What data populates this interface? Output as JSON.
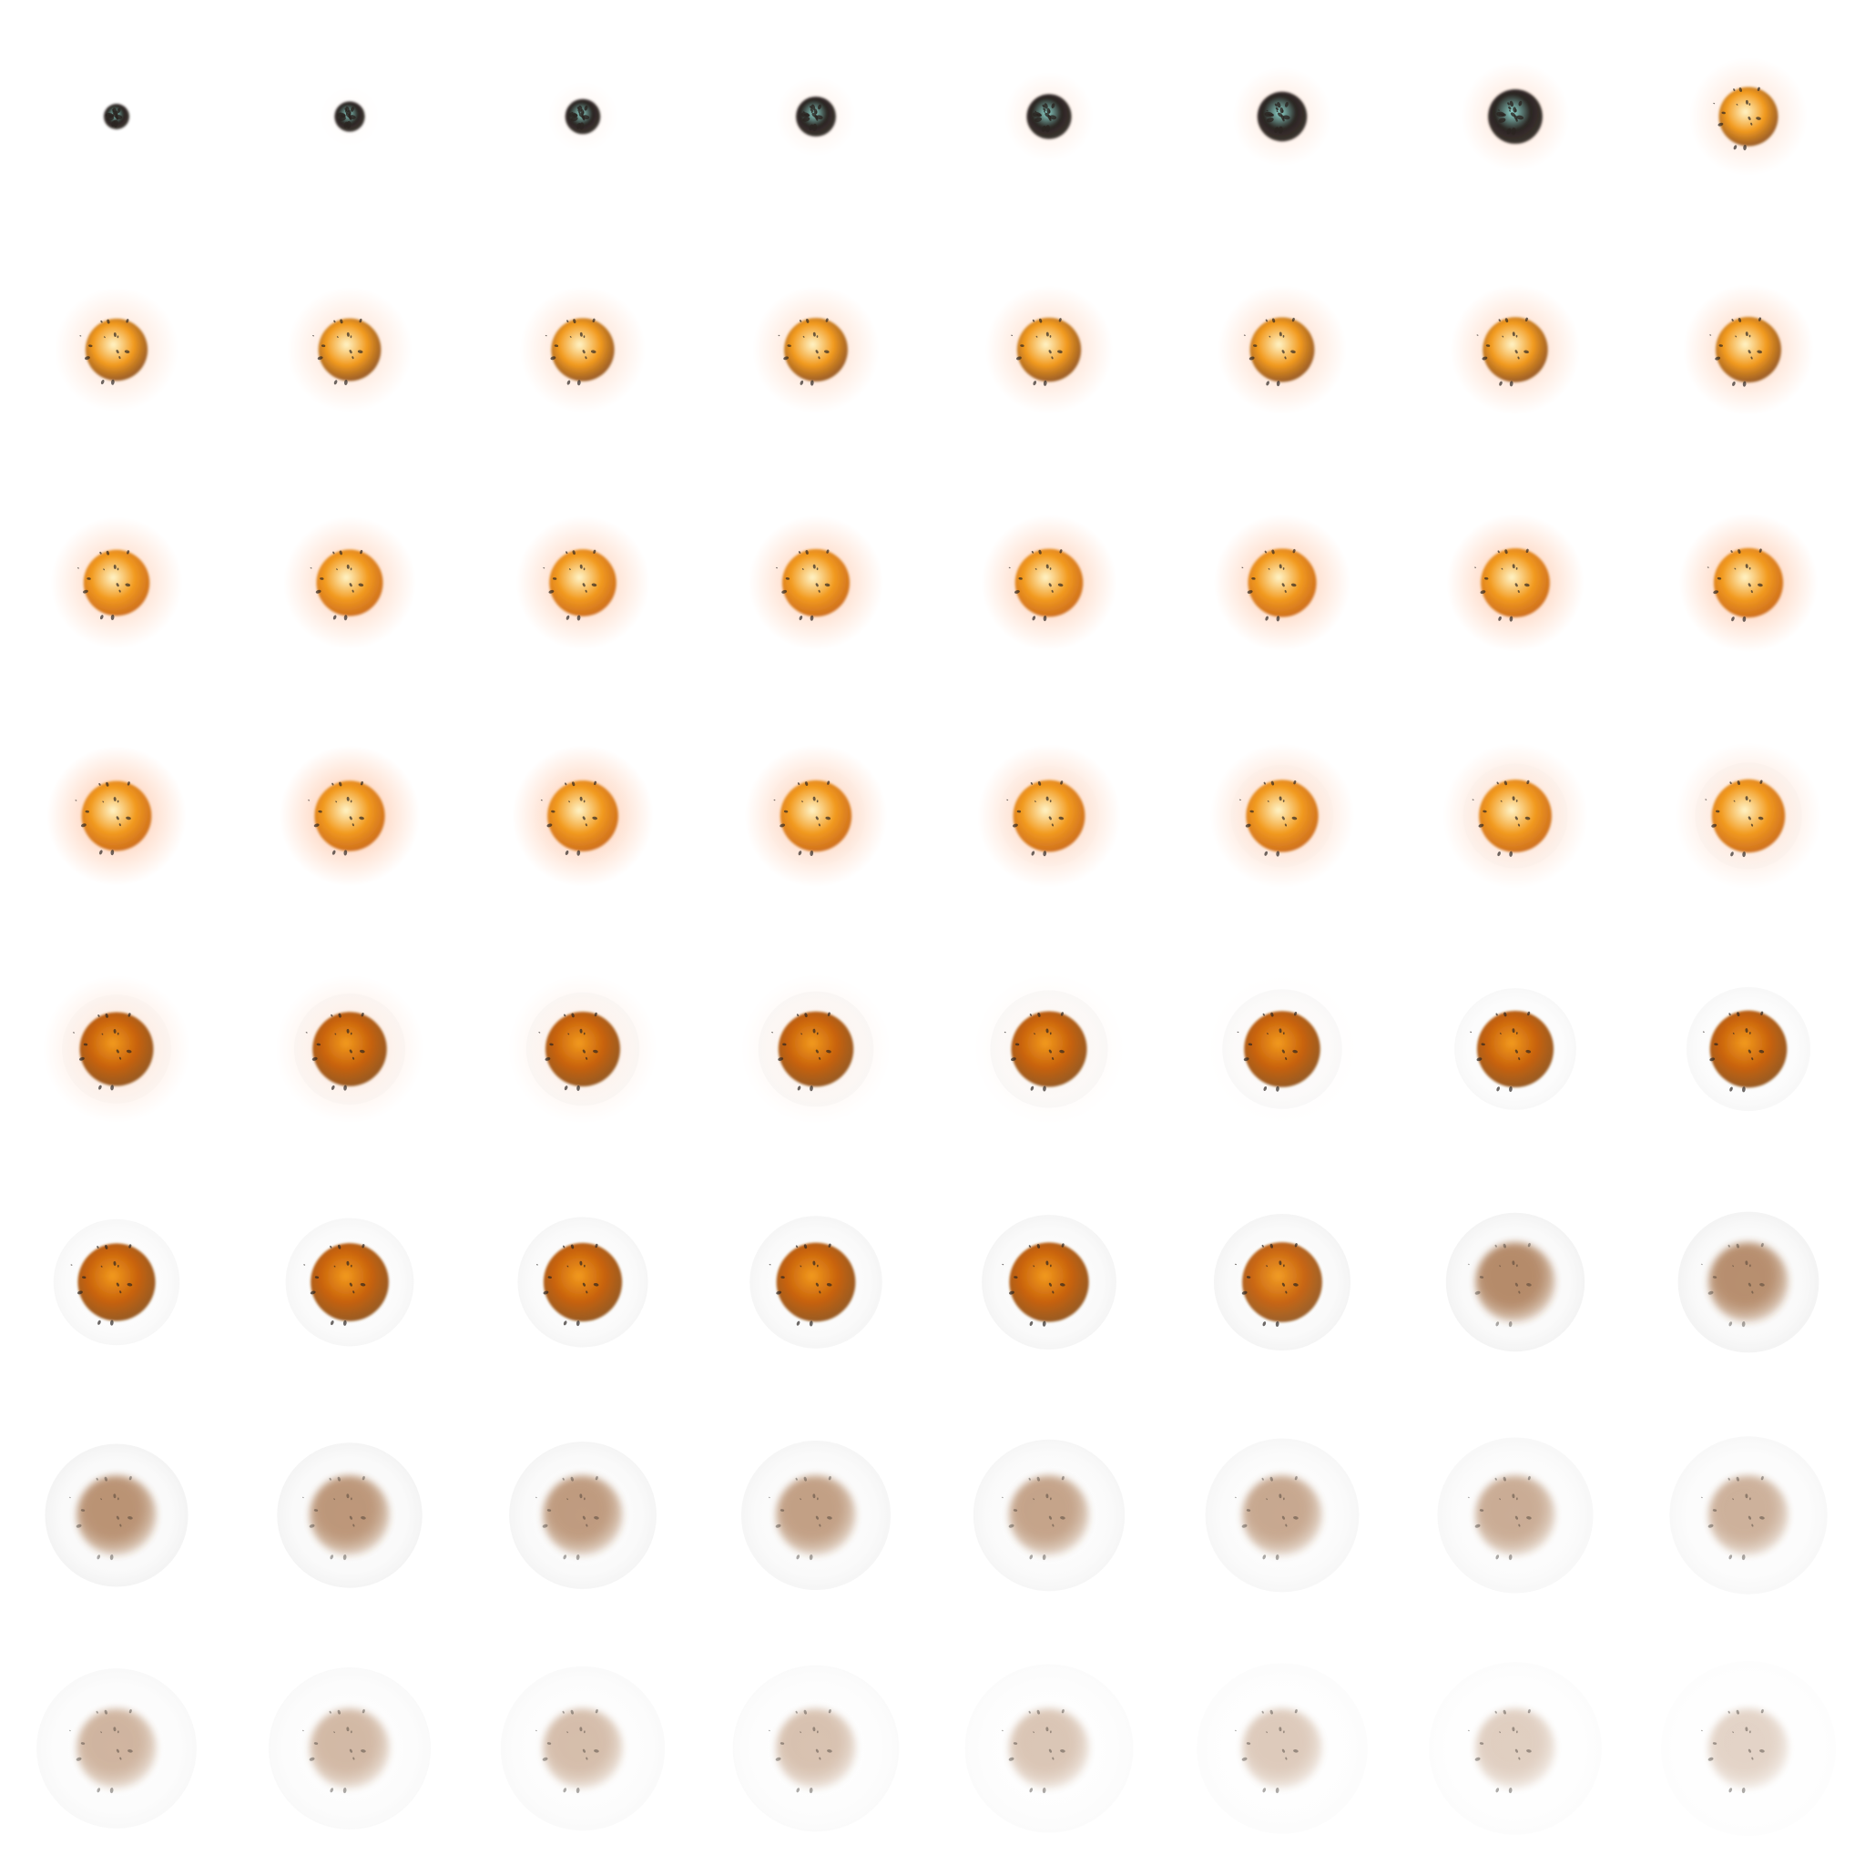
{
  "sprite_sheet": {
    "subject": "explosion-animation",
    "columns": 8,
    "rows": 8,
    "frame_count": 64,
    "background": "#ffffff",
    "palette": {
      "hot_core": "#fff4c8",
      "fire_orange": "#f29a1e",
      "deep_orange": "#c8620c",
      "burnt_brown": "#8a4a12",
      "smoke_brown": "#b08360",
      "debris_dark": "#2a2420",
      "glow": "#ff8a4a",
      "cool_flash": "#8fd8d0",
      "shockwave": "#c9c9c9"
    }
  }
}
